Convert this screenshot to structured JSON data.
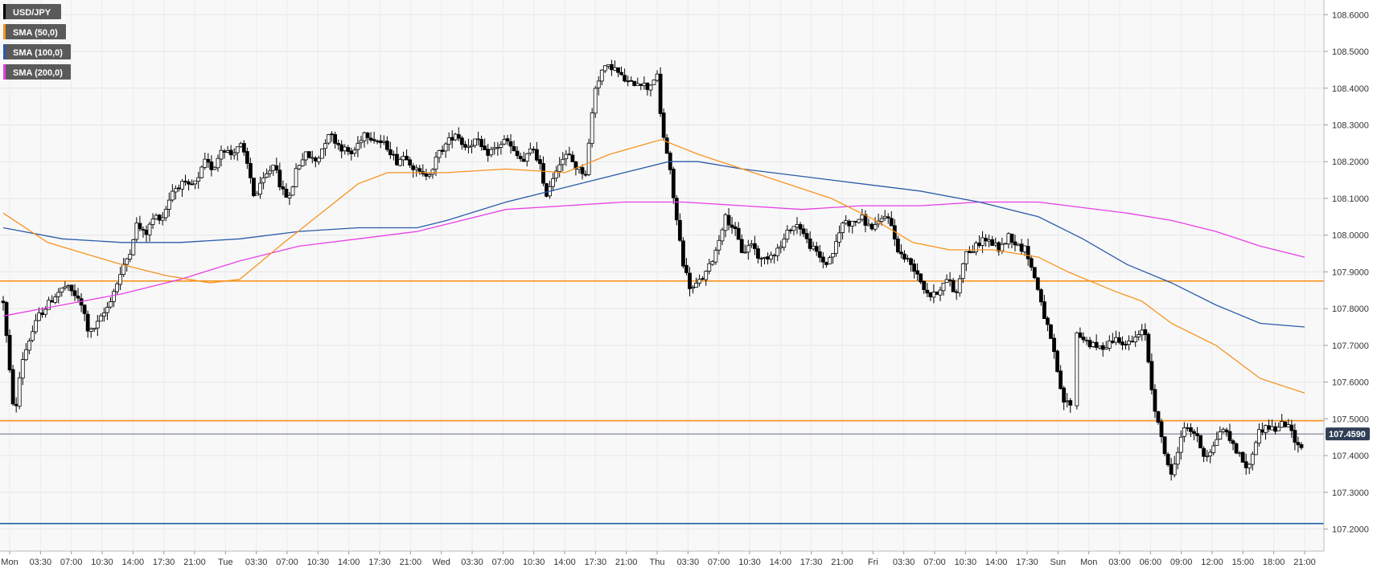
{
  "chart_data": {
    "type": "candlestick",
    "symbol": "USD/JPY",
    "legend": [
      {
        "label": "USD/JPY",
        "color": "#000000"
      },
      {
        "label": "SMA (50,0)",
        "color": "#f7931e"
      },
      {
        "label": "SMA (100,0)",
        "color": "#2a5caa"
      },
      {
        "label": "SMA (200,0)",
        "color": "#e83ee8"
      }
    ],
    "legend_placement": "top-left",
    "y_axis": {
      "side": "right",
      "range": [
        107.14,
        108.64
      ],
      "ticks": [
        "108.6000",
        "108.5000",
        "108.4000",
        "108.3000",
        "108.2000",
        "108.1000",
        "108.0000",
        "107.9000",
        "107.8000",
        "107.7000",
        "107.6000",
        "107.5000",
        "107.4000",
        "107.3000",
        "107.2000"
      ]
    },
    "x_axis": {
      "ticks": [
        "Mon",
        "03:30",
        "07:00",
        "10:30",
        "14:00",
        "17:30",
        "21:00",
        "Tue",
        "03:30",
        "07:00",
        "10:30",
        "14:00",
        "17:30",
        "21:00",
        "Wed",
        "03:30",
        "07:00",
        "10:30",
        "14:00",
        "17:30",
        "21:00",
        "Thu",
        "03:30",
        "07:00",
        "10:30",
        "14:00",
        "17:30",
        "21:00",
        "Fri",
        "03:30",
        "07:00",
        "10:30",
        "14:00",
        "17:30",
        "Sun",
        "Mon",
        "03:00",
        "06:00",
        "09:00",
        "12:00",
        "15:00",
        "18:00",
        "21:00"
      ]
    },
    "grid": true,
    "current_price": {
      "label": "107.4590",
      "value": 107.459
    },
    "horizontal_levels": [
      {
        "value": 107.875,
        "color": "#f7931e"
      },
      {
        "value": 107.495,
        "color": "#f7931e"
      },
      {
        "value": 107.215,
        "color": "#1f5fa6"
      }
    ],
    "path": [
      [
        0,
        107.82
      ],
      [
        5,
        107.6
      ],
      [
        8,
        107.5
      ],
      [
        12,
        107.65
      ],
      [
        18,
        107.72
      ],
      [
        24,
        107.78
      ],
      [
        30,
        107.81
      ],
      [
        36,
        107.84
      ],
      [
        42,
        107.86
      ],
      [
        48,
        107.84
      ],
      [
        54,
        107.8
      ],
      [
        58,
        107.73
      ],
      [
        64,
        107.76
      ],
      [
        70,
        107.8
      ],
      [
        74,
        107.84
      ],
      [
        80,
        107.9
      ],
      [
        86,
        107.96
      ],
      [
        90,
        108.03
      ],
      [
        96,
        108.0
      ],
      [
        102,
        108.05
      ],
      [
        108,
        108.05
      ],
      [
        114,
        108.12
      ],
      [
        120,
        108.14
      ],
      [
        126,
        108.13
      ],
      [
        132,
        108.15
      ],
      [
        136,
        108.2
      ],
      [
        142,
        108.18
      ],
      [
        148,
        108.24
      ],
      [
        154,
        108.22
      ],
      [
        160,
        108.25
      ],
      [
        166,
        108.18
      ],
      [
        170,
        108.1
      ],
      [
        176,
        108.15
      ],
      [
        184,
        108.2
      ],
      [
        188,
        108.12
      ],
      [
        194,
        108.1
      ],
      [
        198,
        108.18
      ],
      [
        204,
        108.22
      ],
      [
        212,
        108.2
      ],
      [
        220,
        108.28
      ],
      [
        228,
        108.24
      ],
      [
        236,
        108.22
      ],
      [
        244,
        108.28
      ],
      [
        252,
        108.26
      ],
      [
        260,
        108.24
      ],
      [
        266,
        108.2
      ],
      [
        272,
        108.22
      ],
      [
        278,
        108.18
      ],
      [
        284,
        108.16
      ],
      [
        290,
        108.18
      ],
      [
        294,
        108.22
      ],
      [
        300,
        108.25
      ],
      [
        306,
        108.28
      ],
      [
        312,
        108.24
      ],
      [
        320,
        108.26
      ],
      [
        326,
        108.22
      ],
      [
        334,
        108.24
      ],
      [
        340,
        108.26
      ],
      [
        346,
        108.22
      ],
      [
        352,
        108.2
      ],
      [
        358,
        108.24
      ],
      [
        364,
        108.18
      ],
      [
        366,
        108.1
      ],
      [
        370,
        108.14
      ],
      [
        376,
        108.2
      ],
      [
        382,
        108.22
      ],
      [
        388,
        108.18
      ],
      [
        394,
        108.17
      ],
      [
        400,
        108.4
      ],
      [
        405,
        108.45
      ],
      [
        412,
        108.46
      ],
      [
        418,
        108.43
      ],
      [
        424,
        108.41
      ],
      [
        430,
        108.42
      ],
      [
        436,
        108.4
      ],
      [
        442,
        108.44
      ],
      [
        445,
        108.3
      ],
      [
        450,
        108.2
      ],
      [
        455,
        108.05
      ],
      [
        460,
        107.92
      ],
      [
        465,
        107.85
      ],
      [
        470,
        107.87
      ],
      [
        476,
        107.9
      ],
      [
        482,
        107.96
      ],
      [
        488,
        108.05
      ],
      [
        494,
        108.02
      ],
      [
        500,
        107.95
      ],
      [
        506,
        107.98
      ],
      [
        512,
        107.93
      ],
      [
        520,
        107.95
      ],
      [
        526,
        107.97
      ],
      [
        532,
        108.02
      ],
      [
        538,
        108.03
      ],
      [
        544,
        107.98
      ],
      [
        550,
        107.95
      ],
      [
        556,
        107.92
      ],
      [
        562,
        107.96
      ],
      [
        568,
        108.04
      ],
      [
        574,
        108.03
      ],
      [
        580,
        108.05
      ],
      [
        586,
        108.02
      ],
      [
        592,
        108.03
      ],
      [
        598,
        108.06
      ],
      [
        602,
        108.0
      ],
      [
        606,
        107.95
      ],
      [
        612,
        107.93
      ],
      [
        618,
        107.9
      ],
      [
        622,
        107.86
      ],
      [
        628,
        107.83
      ],
      [
        634,
        107.86
      ],
      [
        640,
        107.88
      ],
      [
        644,
        107.83
      ],
      [
        650,
        107.95
      ],
      [
        656,
        107.96
      ],
      [
        662,
        107.99
      ],
      [
        668,
        107.98
      ],
      [
        674,
        107.96
      ],
      [
        680,
        108.0
      ],
      [
        686,
        107.97
      ],
      [
        692,
        107.96
      ],
      [
        696,
        107.9
      ],
      [
        700,
        107.85
      ],
      [
        704,
        107.78
      ],
      [
        708,
        107.72
      ],
      [
        712,
        107.65
      ],
      [
        716,
        107.55
      ],
      [
        722,
        107.54
      ],
      [
        724,
        107.74
      ],
      [
        730,
        107.72
      ],
      [
        736,
        107.7
      ],
      [
        742,
        107.69
      ],
      [
        748,
        107.71
      ],
      [
        754,
        107.72
      ],
      [
        760,
        107.7
      ],
      [
        766,
        107.72
      ],
      [
        772,
        107.74
      ],
      [
        776,
        107.6
      ],
      [
        780,
        107.5
      ],
      [
        786,
        107.4
      ],
      [
        790,
        107.34
      ],
      [
        796,
        107.45
      ],
      [
        800,
        107.48
      ],
      [
        806,
        107.46
      ],
      [
        812,
        107.4
      ],
      [
        818,
        107.42
      ],
      [
        824,
        107.48
      ],
      [
        830,
        107.44
      ],
      [
        836,
        107.4
      ],
      [
        842,
        107.36
      ],
      [
        848,
        107.46
      ],
      [
        854,
        107.48
      ],
      [
        860,
        107.47
      ],
      [
        866,
        107.49
      ],
      [
        872,
        107.46
      ],
      [
        876,
        107.42
      ],
      [
        880,
        107.44
      ]
    ],
    "sma50": [
      [
        0,
        108.06
      ],
      [
        30,
        107.98
      ],
      [
        80,
        107.92
      ],
      [
        110,
        107.89
      ],
      [
        140,
        107.87
      ],
      [
        160,
        107.88
      ],
      [
        190,
        107.98
      ],
      [
        215,
        108.06
      ],
      [
        240,
        108.14
      ],
      [
        260,
        108.17
      ],
      [
        300,
        108.17
      ],
      [
        340,
        108.18
      ],
      [
        380,
        108.17
      ],
      [
        410,
        108.22
      ],
      [
        445,
        108.26
      ],
      [
        470,
        108.22
      ],
      [
        500,
        108.18
      ],
      [
        530,
        108.14
      ],
      [
        560,
        108.1
      ],
      [
        590,
        108.04
      ],
      [
        615,
        107.98
      ],
      [
        640,
        107.96
      ],
      [
        670,
        107.96
      ],
      [
        700,
        107.94
      ],
      [
        720,
        107.9
      ],
      [
        750,
        107.85
      ],
      [
        770,
        107.82
      ],
      [
        790,
        107.76
      ],
      [
        820,
        107.7
      ],
      [
        850,
        107.61
      ],
      [
        880,
        107.57
      ]
    ],
    "sma100": [
      [
        0,
        108.02
      ],
      [
        40,
        107.99
      ],
      [
        80,
        107.98
      ],
      [
        120,
        107.98
      ],
      [
        160,
        107.99
      ],
      [
        200,
        108.01
      ],
      [
        240,
        108.02
      ],
      [
        280,
        108.02
      ],
      [
        300,
        108.04
      ],
      [
        340,
        108.09
      ],
      [
        380,
        108.13
      ],
      [
        420,
        108.17
      ],
      [
        450,
        108.2
      ],
      [
        470,
        108.2
      ],
      [
        500,
        108.18
      ],
      [
        540,
        108.16
      ],
      [
        580,
        108.14
      ],
      [
        620,
        108.12
      ],
      [
        660,
        108.09
      ],
      [
        700,
        108.05
      ],
      [
        730,
        107.99
      ],
      [
        760,
        107.92
      ],
      [
        790,
        107.87
      ],
      [
        820,
        107.81
      ],
      [
        850,
        107.76
      ],
      [
        880,
        107.75
      ]
    ],
    "sma200": [
      [
        0,
        107.78
      ],
      [
        40,
        107.81
      ],
      [
        80,
        107.84
      ],
      [
        120,
        107.88
      ],
      [
        160,
        107.93
      ],
      [
        200,
        107.97
      ],
      [
        240,
        107.99
      ],
      [
        280,
        108.01
      ],
      [
        310,
        108.04
      ],
      [
        340,
        108.07
      ],
      [
        380,
        108.08
      ],
      [
        420,
        108.09
      ],
      [
        460,
        108.09
      ],
      [
        500,
        108.08
      ],
      [
        540,
        108.07
      ],
      [
        580,
        108.08
      ],
      [
        620,
        108.08
      ],
      [
        660,
        108.09
      ],
      [
        700,
        108.09
      ],
      [
        720,
        108.08
      ],
      [
        760,
        108.06
      ],
      [
        790,
        108.04
      ],
      [
        820,
        108.01
      ],
      [
        850,
        107.97
      ],
      [
        880,
        107.94
      ]
    ]
  }
}
